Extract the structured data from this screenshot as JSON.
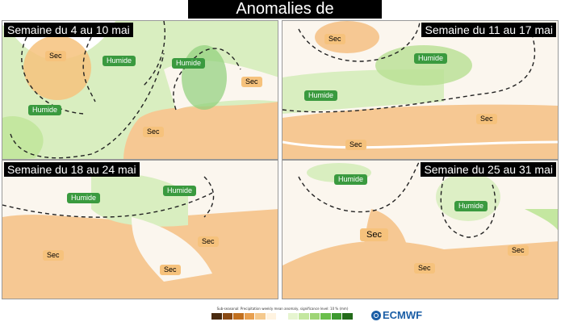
{
  "title": "Anomalies de précipitations",
  "panels": [
    {
      "title": "Semaine du 4 au 10 mai",
      "labels": [
        {
          "text": "Sec",
          "kind": "sec"
        },
        {
          "text": "Humide",
          "kind": "hum"
        },
        {
          "text": "Humide",
          "kind": "hum"
        },
        {
          "text": "Humide",
          "kind": "hum"
        },
        {
          "text": "Sec",
          "kind": "sec"
        },
        {
          "text": "Sec",
          "kind": "sec"
        }
      ]
    },
    {
      "title": "Semaine du 11 au 17 mai",
      "labels": [
        {
          "text": "Sec",
          "kind": "sec"
        },
        {
          "text": "Humide",
          "kind": "hum"
        },
        {
          "text": "Humide",
          "kind": "hum"
        },
        {
          "text": "Sec",
          "kind": "sec"
        },
        {
          "text": "Sec",
          "kind": "sec"
        }
      ]
    },
    {
      "title": "Semaine du 18 au 24 mai",
      "labels": [
        {
          "text": "Humide",
          "kind": "hum"
        },
        {
          "text": "Humide",
          "kind": "hum"
        },
        {
          "text": "Sec",
          "kind": "sec"
        },
        {
          "text": "Sec",
          "kind": "sec"
        },
        {
          "text": "Sec",
          "kind": "sec"
        }
      ]
    },
    {
      "title": "Semaine du 25 au 31 mai",
      "labels": [
        {
          "text": "Humide",
          "kind": "hum"
        },
        {
          "text": "Humide",
          "kind": "hum"
        },
        {
          "text": "Sec",
          "kind": "sec"
        },
        {
          "text": "Sec",
          "kind": "sec"
        },
        {
          "text": "Sec",
          "kind": "sec"
        }
      ]
    }
  ],
  "legend": {
    "caption": "Sub-seasonal: Precipitation weekly mean anomaly, significance level: 10 % (mm)",
    "colors": [
      "#4a2b10",
      "#8a4a14",
      "#c2701f",
      "#e8a050",
      "#f5c98d",
      "#fff3e0",
      "#ffffff",
      "#e6f5d0",
      "#c4e7a0",
      "#9fd576",
      "#6bbf4c",
      "#3e9a30",
      "#236b1a"
    ]
  },
  "logo": {
    "text": "ECMWF"
  },
  "colors": {
    "dry": "#f6c27c",
    "wet": "#3a9a3f",
    "title_bg": "#000000"
  }
}
